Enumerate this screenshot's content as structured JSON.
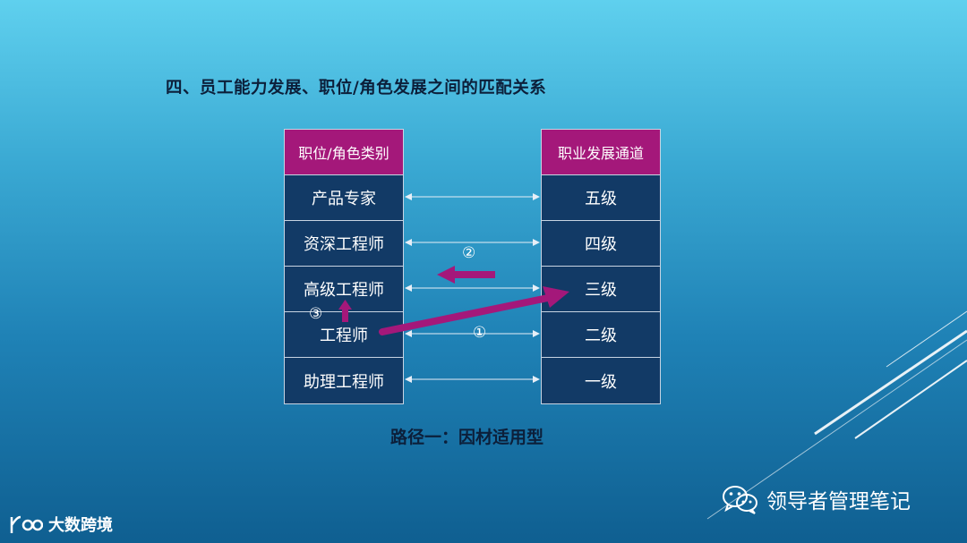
{
  "slide": {
    "title": "四、员工能力发展、职位/角色发展之间的匹配关系",
    "caption": "路径一：因材适用型"
  },
  "left_column": {
    "header": "职位/角色类别",
    "items": [
      "产品专家",
      "资深工程师",
      "高级工程师",
      "工程师",
      "助理工程师"
    ]
  },
  "right_column": {
    "header": "职业发展通道",
    "items": [
      "五级",
      "四级",
      "三级",
      "二级",
      "一级"
    ]
  },
  "markers": {
    "one": "①",
    "two": "②",
    "three": "③"
  },
  "colors": {
    "header_bg": "#a4187a",
    "cell_bg": "#123a66",
    "arrow": "#a4187a"
  },
  "footer": {
    "wechat_account": "领导者管理笔记",
    "wechat_icon": "wechat-icon",
    "logo_text": "大数跨境",
    "logo_icon": "logo-100-icon"
  }
}
